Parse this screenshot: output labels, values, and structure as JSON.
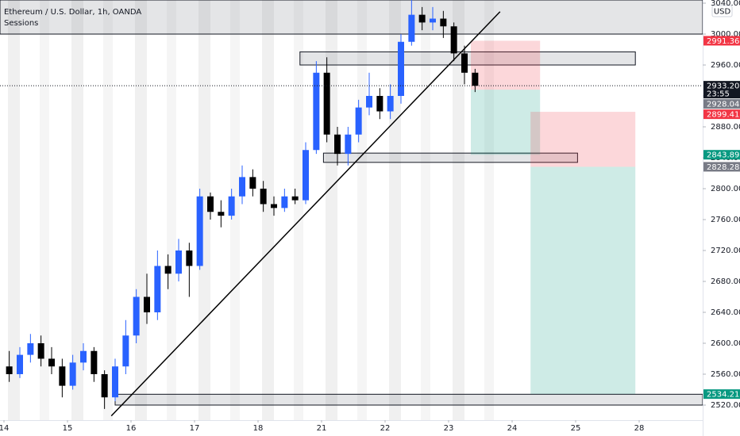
{
  "chart_data": {
    "type": "candlestick",
    "title": "Ethereum / U.S. Dollar, 1h, OANDA",
    "indicator": "Sessions",
    "currency": "USD",
    "up_color": "#2962ff",
    "down_color": "#000000",
    "x": [
      0.083,
      0.25,
      0.417,
      0.583,
      0.75,
      0.917,
      1.083,
      1.25,
      1.417,
      1.583,
      1.75,
      1.917,
      2.083,
      2.25,
      2.417,
      2.583,
      2.75,
      2.917,
      3.083,
      3.25,
      3.417,
      3.583,
      3.75,
      3.917,
      4.083,
      4.25,
      4.417,
      4.583,
      4.75,
      4.917,
      5.083,
      5.25,
      5.417,
      5.583,
      5.75,
      5.917,
      6.083,
      6.25,
      6.417,
      6.583,
      6.75,
      6.917,
      7.083,
      7.25,
      7.417
    ],
    "open": [
      2570,
      2560,
      2585,
      2600,
      2580,
      2570,
      2545,
      2575,
      2590,
      2560,
      2530,
      2570,
      2610,
      2660,
      2640,
      2700,
      2690,
      2720,
      2700,
      2790,
      2770,
      2765,
      2790,
      2815,
      2800,
      2780,
      2775,
      2790,
      2785,
      2850,
      2950,
      2870,
      2845,
      2870,
      2905,
      2920,
      2900,
      2920,
      2990,
      3025,
      3015,
      3020,
      3010,
      2975,
      2950
    ],
    "high": [
      2590,
      2595,
      2612,
      2610,
      2595,
      2580,
      2585,
      2600,
      2595,
      2565,
      2580,
      2630,
      2670,
      2690,
      2720,
      2715,
      2735,
      2730,
      2800,
      2795,
      2785,
      2800,
      2830,
      2825,
      2810,
      2790,
      2800,
      2800,
      2860,
      2965,
      2970,
      2880,
      2880,
      2915,
      2950,
      2930,
      2935,
      3000,
      3045,
      3035,
      3035,
      3030,
      3015,
      2985,
      2955
    ],
    "low": [
      2550,
      2555,
      2575,
      2570,
      2560,
      2530,
      2540,
      2565,
      2550,
      2515,
      2525,
      2560,
      2600,
      2625,
      2630,
      2670,
      2680,
      2660,
      2695,
      2760,
      2750,
      2760,
      2780,
      2790,
      2770,
      2765,
      2770,
      2780,
      2780,
      2845,
      2860,
      2830,
      2830,
      2860,
      2895,
      2890,
      2890,
      2910,
      2985,
      3005,
      3005,
      2995,
      2965,
      2935,
      2925
    ],
    "close": [
      2560,
      2585,
      2600,
      2580,
      2570,
      2545,
      2575,
      2590,
      2560,
      2530,
      2570,
      2610,
      2660,
      2640,
      2700,
      2690,
      2720,
      2700,
      2790,
      2770,
      2765,
      2790,
      2815,
      2800,
      2780,
      2775,
      2790,
      2785,
      2850,
      2950,
      2870,
      2845,
      2870,
      2905,
      2920,
      2900,
      2920,
      2990,
      3025,
      3015,
      3020,
      3010,
      2975,
      2950,
      2933.2
    ],
    "xlim": [
      -0.0625,
      11
    ],
    "xticks": [
      {
        "value": 0,
        "label": "14"
      },
      {
        "value": 1,
        "label": "15"
      },
      {
        "value": 2,
        "label": "16"
      },
      {
        "value": 3,
        "label": "17"
      },
      {
        "value": 4,
        "label": "18"
      },
      {
        "value": 5,
        "label": "21"
      },
      {
        "value": 6,
        "label": "22"
      },
      {
        "value": 7,
        "label": "23"
      },
      {
        "value": 8,
        "label": "24"
      },
      {
        "value": 9,
        "label": "25"
      },
      {
        "value": 10,
        "label": "28"
      }
    ],
    "ylim": [
      2500.5,
      3044.1
    ],
    "yticks": [
      {
        "value": 2520,
        "label": "2520.00"
      },
      {
        "value": 2560,
        "label": "2560.00"
      },
      {
        "value": 2600,
        "label": "2600.00"
      },
      {
        "value": 2640,
        "label": "2640.00"
      },
      {
        "value": 2680,
        "label": "2680.00"
      },
      {
        "value": 2720,
        "label": "2720.00"
      },
      {
        "value": 2760,
        "label": "2760.00"
      },
      {
        "value": 2800,
        "label": "2800.00"
      },
      {
        "value": 2840,
        "label": "2840.00"
      },
      {
        "value": 2880,
        "label": "2880.00"
      },
      {
        "value": 2920,
        "label": "2920.00"
      },
      {
        "value": 2960,
        "label": "2960.00"
      },
      {
        "value": 3000,
        "label": "3000.00"
      },
      {
        "value": 3040,
        "label": "3040.00"
      }
    ],
    "last_price": {
      "value": 2933.2,
      "label": "2933.20",
      "countdown": "23:55"
    },
    "zones": [
      {
        "x": [
          -0.0625,
          11
        ],
        "y": [
          3000,
          3044.1
        ]
      },
      {
        "x": [
          4.66,
          9.94
        ],
        "y": [
          2960,
          2977
        ]
      },
      {
        "x": [
          5.03,
          9.03
        ],
        "y": [
          2834,
          2846
        ]
      },
      {
        "x": [
          1.75,
          11
        ],
        "y": [
          2520,
          2534
        ]
      }
    ],
    "trendline": {
      "x": [
        1.69,
        7.81
      ],
      "y": [
        2506,
        3029
      ]
    },
    "positions": [
      {
        "x": [
          7.35,
          8.44
        ],
        "stop": 2991.36,
        "entry": 2928.04,
        "target": 2843.89
      },
      {
        "x": [
          8.29,
          9.94
        ],
        "stop": 2899.41,
        "entry": 2828.28,
        "target": 2534.21
      }
    ]
  }
}
